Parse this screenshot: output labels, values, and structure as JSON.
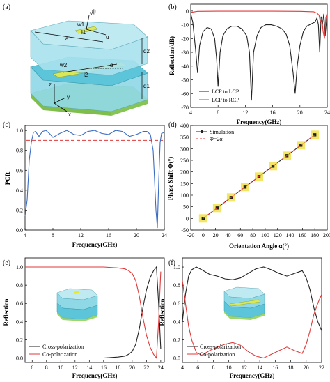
{
  "chart_data": [
    {
      "panel": "(a)",
      "type": "diagram",
      "labels": [
        "ψ",
        "w1",
        "l1",
        "u",
        "v",
        "a",
        "d2",
        "w2",
        "l2",
        "α",
        "d1",
        "z",
        "y",
        "x"
      ],
      "colors": {
        "layer": "#8fd8e6",
        "strip": "#d8e85a",
        "ground": "#9ed66a"
      }
    },
    {
      "panel": "(b)",
      "type": "line",
      "xlabel": "Frequency(GHz)",
      "ylabel": "Reflection(dB)",
      "xlim": [
        4,
        24
      ],
      "ylim": [
        -70,
        5
      ],
      "xticks": [
        4,
        8,
        12,
        16,
        20,
        24
      ],
      "yticks": [
        0,
        -10,
        -20,
        -30,
        -40,
        -50,
        -60,
        -70
      ],
      "legend": "bottom-left",
      "series": [
        {
          "name": "LCP to LCP",
          "color": "#222222",
          "x": [
            4.0,
            4.3,
            4.7,
            5.0,
            5.3,
            5.8,
            6.4,
            7.0,
            7.5,
            7.8,
            8.0,
            8.3,
            8.7,
            9.3,
            10.0,
            10.8,
            11.5,
            12.2,
            12.6,
            12.9,
            13.2,
            13.7,
            14.3,
            15.0,
            15.8,
            16.6,
            17.4,
            18.0,
            18.5,
            19.0,
            19.3,
            19.6,
            20.0,
            20.5,
            21.0,
            21.4,
            21.8,
            22.2,
            22.5,
            22.7,
            22.9,
            23.1,
            23.3,
            23.5,
            23.7,
            24.0
          ],
          "y": [
            -2,
            -8,
            -28,
            -45,
            -25,
            -15,
            -12,
            -13,
            -20,
            -35,
            -55,
            -30,
            -18,
            -13,
            -11,
            -11,
            -13,
            -18,
            -30,
            -65,
            -30,
            -18,
            -12,
            -10,
            -10,
            -11,
            -13,
            -17,
            -25,
            -45,
            -60,
            -40,
            -25,
            -15,
            -11,
            -10,
            -9,
            -8,
            -5,
            -10,
            -30,
            -4,
            -10,
            -2,
            -18,
            -1
          ]
        },
        {
          "name": "LCP to RCP",
          "color": "#e03a3a",
          "x": [
            4.0,
            5.0,
            8.0,
            12.0,
            16.0,
            20.0,
            22.0,
            22.5,
            22.8,
            23.0,
            23.2,
            23.4,
            23.6,
            23.8,
            24.0
          ],
          "y": [
            -1.0,
            -0.2,
            -0.1,
            -0.1,
            -0.1,
            -0.2,
            -0.5,
            -1.5,
            -3,
            -8,
            -5,
            -15,
            -20,
            -5,
            -1
          ]
        }
      ]
    },
    {
      "panel": "(c)",
      "type": "line",
      "xlabel": "Frequency(GHz)",
      "ylabel": "PCR",
      "xlim": [
        4,
        24
      ],
      "ylim": [
        0.0,
        1.05
      ],
      "xticks": [
        4,
        8,
        12,
        16,
        20,
        24
      ],
      "yticks": [
        0.0,
        0.2,
        0.4,
        0.6,
        0.8,
        1.0
      ],
      "reference_line": 0.9,
      "series": [
        {
          "color": "#3b6cc4",
          "x": [
            4.0,
            4.3,
            4.6,
            4.9,
            5.2,
            5.5,
            6.0,
            6.5,
            7.0,
            7.5,
            8.0,
            9.0,
            10.0,
            11.0,
            12.0,
            13.0,
            14.0,
            15.0,
            16.0,
            17.0,
            18.0,
            19.0,
            20.0,
            21.0,
            21.5,
            22.0,
            22.4,
            22.6,
            22.8,
            23.0,
            23.2,
            23.4,
            23.6,
            24.0
          ],
          "y": [
            0.14,
            0.3,
            0.7,
            0.88,
            0.98,
            0.99,
            0.94,
            0.99,
            1.0,
            0.97,
            0.93,
            0.97,
            1.0,
            0.96,
            0.95,
            0.99,
            1.0,
            0.97,
            0.96,
            1.0,
            0.99,
            0.94,
            0.96,
            0.99,
            0.99,
            0.96,
            0.8,
            0.5,
            0.2,
            0.02,
            0.5,
            0.88,
            0.97,
            0.98
          ]
        }
      ]
    },
    {
      "panel": "(d)",
      "type": "scatter",
      "xlabel": "Orientation Angle α(°)",
      "ylabel": "Phase Shift Φ(°)",
      "xlim": [
        -20,
        200
      ],
      "ylim": [
        -50,
        400
      ],
      "xticks": [
        -20,
        0,
        20,
        40,
        60,
        80,
        100,
        120,
        140,
        160,
        180,
        200
      ],
      "yticks": [
        -50,
        0,
        50,
        100,
        150,
        200,
        250,
        300,
        350,
        400
      ],
      "legend": "top-left",
      "series": [
        {
          "name": "Simulation",
          "color": "#222222",
          "x": [
            0,
            22.5,
            45,
            67.5,
            90,
            112.5,
            135,
            157.5,
            180
          ],
          "y": [
            0,
            45,
            90,
            135,
            180,
            225,
            270,
            315,
            360
          ]
        },
        {
          "name": "Φ=2α",
          "color": "#e03a3a",
          "dashed": true,
          "x": [
            0,
            180
          ],
          "y": [
            0,
            360
          ]
        }
      ],
      "marker_fill": "#f2e24a"
    },
    {
      "panel": "(e)",
      "type": "line",
      "xlabel": "Frequency(GHz)",
      "ylabel": "Reflection",
      "xlim": [
        5,
        24.5
      ],
      "ylim": [
        -0.05,
        1.1
      ],
      "xticks": [
        6,
        8,
        10,
        12,
        14,
        16,
        18,
        20,
        22,
        24
      ],
      "yticks": [
        0.0,
        0.2,
        0.4,
        0.6,
        0.8,
        1.0
      ],
      "legend": "bottom-left",
      "series": [
        {
          "name": "Cross-polarization",
          "color": "#222222",
          "x": [
            5.0,
            8.0,
            12.0,
            16.0,
            18.0,
            19.0,
            19.5,
            20.0,
            20.5,
            21.0,
            21.5,
            22.0,
            22.5,
            23.0,
            23.4,
            23.7,
            24.0
          ],
          "y": [
            0.0,
            0.0,
            0.0,
            0.0,
            0.01,
            0.02,
            0.04,
            0.07,
            0.15,
            0.32,
            0.55,
            0.75,
            0.88,
            0.96,
            1.0,
            0.6,
            0.1
          ]
        },
        {
          "name": "Co-polarization",
          "color": "#e03a3a",
          "x": [
            5.0,
            8.0,
            12.0,
            16.0,
            18.0,
            19.0,
            19.5,
            20.0,
            20.5,
            21.0,
            21.5,
            22.0,
            22.5,
            23.0,
            23.4,
            23.7,
            24.0
          ],
          "y": [
            1.0,
            1.0,
            1.0,
            1.0,
            0.99,
            0.98,
            0.96,
            0.93,
            0.85,
            0.68,
            0.45,
            0.25,
            0.12,
            0.04,
            0.0,
            0.4,
            0.95
          ]
        }
      ]
    },
    {
      "panel": "(f)",
      "type": "line",
      "xlabel": "Frequency(GHz)",
      "ylabel": "Reflection",
      "xlim": [
        4,
        22
      ],
      "ylim": [
        -0.05,
        1.1
      ],
      "xticks": [
        4,
        6,
        8,
        10,
        12,
        14,
        16,
        18,
        20,
        22
      ],
      "yticks": [
        0.0,
        0.2,
        0.4,
        0.6,
        0.8,
        1.0
      ],
      "legend": "bottom-left",
      "series": [
        {
          "name": "Cross-polarization",
          "color": "#222222",
          "x": [
            4.0,
            4.4,
            4.8,
            5.2,
            5.8,
            6.5,
            7.5,
            8.5,
            9.5,
            10.5,
            11.5,
            12.5,
            13.5,
            14.5,
            15.5,
            16.5,
            17.5,
            18.5,
            19.5,
            20.0,
            20.5,
            21.0,
            21.5,
            22.0
          ],
          "y": [
            0.4,
            0.7,
            0.9,
            0.97,
            1.0,
            0.97,
            0.92,
            0.9,
            0.87,
            0.86,
            0.88,
            0.93,
            0.98,
            1.0,
            0.97,
            0.93,
            0.9,
            0.93,
            0.96,
            0.88,
            0.75,
            0.55,
            0.4,
            0.3
          ]
        },
        {
          "name": "Co-polarization",
          "color": "#e03a3a",
          "x": [
            4.0,
            4.4,
            4.8,
            5.2,
            5.8,
            6.5,
            7.5,
            8.5,
            9.5,
            10.5,
            11.5,
            12.5,
            13.5,
            14.5,
            15.5,
            16.5,
            17.5,
            18.5,
            19.5,
            20.0,
            20.5,
            21.0,
            21.5,
            22.0
          ],
          "y": [
            0.85,
            0.6,
            0.35,
            0.2,
            0.06,
            0.03,
            0.08,
            0.12,
            0.15,
            0.17,
            0.14,
            0.07,
            0.02,
            0.0,
            0.04,
            0.08,
            0.12,
            0.08,
            0.05,
            0.15,
            0.3,
            0.48,
            0.6,
            0.7
          ]
        }
      ]
    }
  ]
}
